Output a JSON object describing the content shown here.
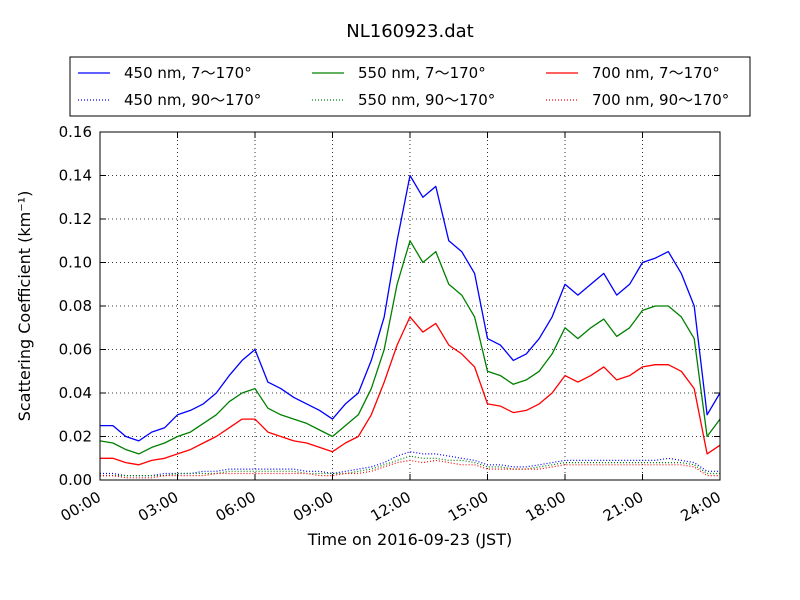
{
  "chart_data": {
    "type": "line",
    "title": "NL160923.dat",
    "xlabel": "Time on 2016-09-23 (JST)",
    "ylabel": "Scattering Coefficient (km⁻¹)",
    "xlim": [
      0,
      24
    ],
    "ylim": [
      0,
      0.16
    ],
    "x_unit": "hours",
    "grid": true,
    "legend_placement": "top",
    "x_ticks": [
      0,
      3,
      6,
      9,
      12,
      15,
      18,
      21,
      24
    ],
    "x_tick_labels": [
      "00:00",
      "03:00",
      "06:00",
      "09:00",
      "12:00",
      "15:00",
      "18:00",
      "21:00",
      "24:00"
    ],
    "y_ticks": [
      0,
      0.02,
      0.04,
      0.06,
      0.08,
      0.1,
      0.12,
      0.14,
      0.16
    ],
    "y_tick_labels": [
      "0.00",
      "0.02",
      "0.04",
      "0.06",
      "0.08",
      "0.10",
      "0.12",
      "0.14",
      "0.16"
    ],
    "x": [
      0,
      0.5,
      1,
      1.5,
      2,
      2.5,
      3,
      3.5,
      4,
      4.5,
      5,
      5.5,
      6,
      6.5,
      7,
      7.5,
      8,
      8.5,
      9,
      9.5,
      10,
      10.5,
      11,
      11.5,
      12,
      12.5,
      13,
      13.5,
      14,
      14.5,
      15,
      15.5,
      16,
      16.5,
      17,
      17.5,
      18,
      18.5,
      19,
      19.5,
      20,
      20.5,
      21,
      21.5,
      22,
      22.5,
      23,
      23.5,
      24
    ],
    "series": [
      {
        "name": "450 nm, 7～170°",
        "color": "#0000ff",
        "style": "solid",
        "values": [
          0.025,
          0.025,
          0.02,
          0.018,
          0.022,
          0.024,
          0.03,
          0.032,
          0.035,
          0.04,
          0.048,
          0.055,
          0.06,
          0.045,
          0.042,
          0.038,
          0.035,
          0.032,
          0.028,
          0.035,
          0.04,
          0.055,
          0.075,
          0.11,
          0.14,
          0.13,
          0.135,
          0.11,
          0.105,
          0.095,
          0.065,
          0.062,
          0.055,
          0.058,
          0.065,
          0.075,
          0.09,
          0.085,
          0.09,
          0.095,
          0.085,
          0.09,
          0.1,
          0.102,
          0.105,
          0.095,
          0.08,
          0.03,
          0.04
        ]
      },
      {
        "name": "450 nm, 90～170°",
        "color": "#0000ff",
        "style": "dotted",
        "values": [
          0.003,
          0.003,
          0.002,
          0.002,
          0.002,
          0.003,
          0.003,
          0.003,
          0.004,
          0.004,
          0.005,
          0.005,
          0.005,
          0.005,
          0.005,
          0.005,
          0.004,
          0.004,
          0.003,
          0.004,
          0.005,
          0.006,
          0.008,
          0.011,
          0.013,
          0.012,
          0.012,
          0.011,
          0.01,
          0.009,
          0.007,
          0.007,
          0.006,
          0.006,
          0.007,
          0.008,
          0.009,
          0.009,
          0.009,
          0.009,
          0.009,
          0.009,
          0.009,
          0.009,
          0.01,
          0.009,
          0.008,
          0.004,
          0.004
        ]
      },
      {
        "name": "550 nm, 7～170°",
        "color": "#008000",
        "style": "solid",
        "values": [
          0.018,
          0.017,
          0.014,
          0.012,
          0.015,
          0.017,
          0.02,
          0.022,
          0.026,
          0.03,
          0.036,
          0.04,
          0.042,
          0.033,
          0.03,
          0.028,
          0.026,
          0.023,
          0.02,
          0.025,
          0.03,
          0.042,
          0.06,
          0.09,
          0.11,
          0.1,
          0.105,
          0.09,
          0.085,
          0.075,
          0.05,
          0.048,
          0.044,
          0.046,
          0.05,
          0.058,
          0.07,
          0.065,
          0.07,
          0.074,
          0.066,
          0.07,
          0.078,
          0.08,
          0.08,
          0.075,
          0.065,
          0.02,
          0.028
        ]
      },
      {
        "name": "550 nm, 90～170°",
        "color": "#008000",
        "style": "dotted",
        "values": [
          0.002,
          0.002,
          0.002,
          0.002,
          0.002,
          0.002,
          0.003,
          0.003,
          0.003,
          0.003,
          0.004,
          0.004,
          0.004,
          0.004,
          0.004,
          0.004,
          0.003,
          0.003,
          0.003,
          0.003,
          0.004,
          0.005,
          0.007,
          0.009,
          0.011,
          0.01,
          0.01,
          0.009,
          0.009,
          0.008,
          0.006,
          0.006,
          0.005,
          0.005,
          0.006,
          0.007,
          0.008,
          0.008,
          0.008,
          0.008,
          0.008,
          0.008,
          0.008,
          0.008,
          0.008,
          0.008,
          0.007,
          0.003,
          0.003
        ]
      },
      {
        "name": "700 nm, 7～170°",
        "color": "#ff0000",
        "style": "solid",
        "values": [
          0.01,
          0.01,
          0.008,
          0.007,
          0.009,
          0.01,
          0.012,
          0.014,
          0.017,
          0.02,
          0.024,
          0.028,
          0.028,
          0.022,
          0.02,
          0.018,
          0.017,
          0.015,
          0.013,
          0.017,
          0.02,
          0.03,
          0.045,
          0.062,
          0.075,
          0.068,
          0.072,
          0.062,
          0.058,
          0.052,
          0.035,
          0.034,
          0.031,
          0.032,
          0.035,
          0.04,
          0.048,
          0.045,
          0.048,
          0.052,
          0.046,
          0.048,
          0.052,
          0.053,
          0.053,
          0.05,
          0.042,
          0.012,
          0.016
        ]
      },
      {
        "name": "700 nm, 90～170°",
        "color": "#ff0000",
        "style": "dotted",
        "values": [
          0.002,
          0.002,
          0.001,
          0.001,
          0.001,
          0.002,
          0.002,
          0.002,
          0.002,
          0.003,
          0.003,
          0.003,
          0.003,
          0.003,
          0.003,
          0.003,
          0.003,
          0.002,
          0.002,
          0.003,
          0.003,
          0.004,
          0.006,
          0.008,
          0.009,
          0.008,
          0.009,
          0.008,
          0.007,
          0.007,
          0.005,
          0.005,
          0.005,
          0.005,
          0.005,
          0.006,
          0.007,
          0.007,
          0.007,
          0.007,
          0.007,
          0.007,
          0.007,
          0.007,
          0.007,
          0.007,
          0.006,
          0.002,
          0.002
        ]
      }
    ]
  }
}
